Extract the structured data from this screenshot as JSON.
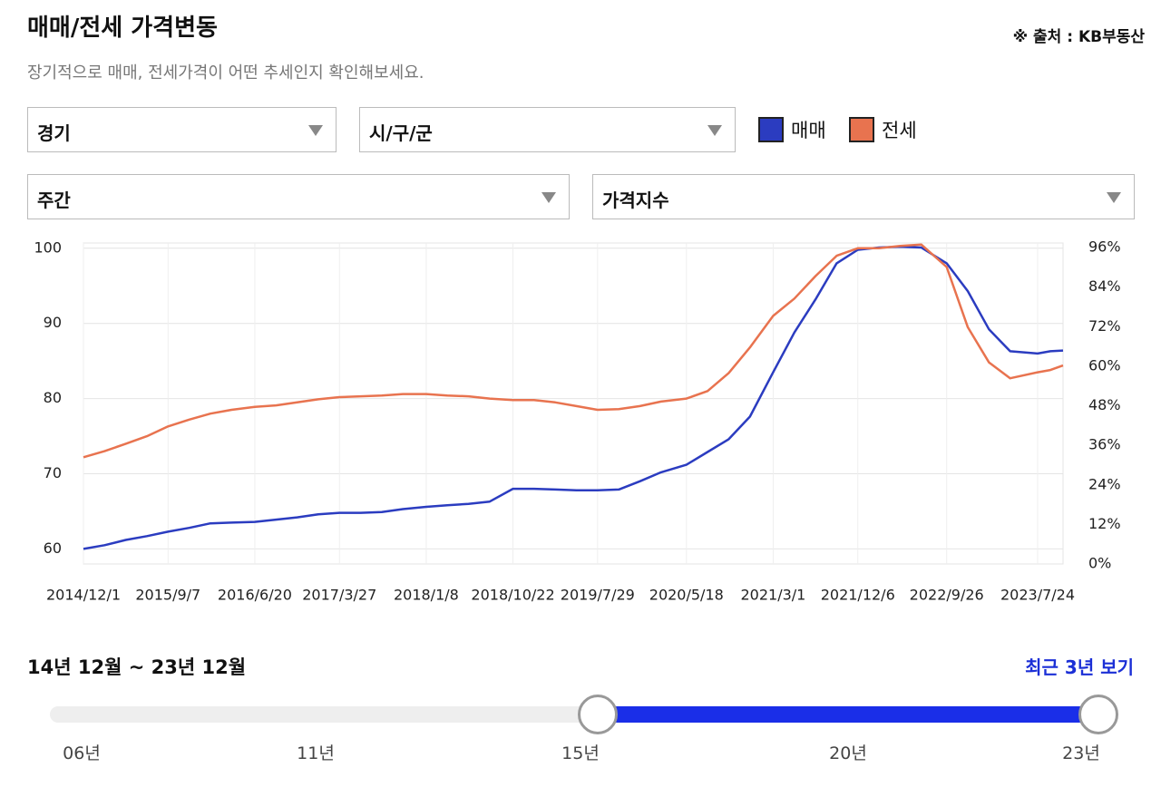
{
  "header": {
    "title": "매매/전세 가격변동",
    "source": "※ 출처 : KB부동산",
    "subtitle": "장기적으로 매매, 전세가격이 어떤 추세인지 확인해보세요."
  },
  "filters": {
    "region": "경기",
    "district": "시/구/군",
    "period": "주간",
    "metric": "가격지수"
  },
  "chart_data": {
    "type": "line",
    "x": [
      "2014/12/1",
      "2015/2/9",
      "2015/4/20",
      "2015/6/29",
      "2015/9/7",
      "2015/11/16",
      "2016/1/25",
      "2016/4/4",
      "2016/6/20",
      "2016/8/29",
      "2016/11/7",
      "2017/1/16",
      "2017/3/27",
      "2017/6/5",
      "2017/8/14",
      "2017/10/23",
      "2018/1/8",
      "2018/3/19",
      "2018/5/28",
      "2018/8/6",
      "2018/10/22",
      "2018/12/31",
      "2019/3/11",
      "2019/5/20",
      "2019/7/29",
      "2019/10/7",
      "2019/12/16",
      "2020/2/24",
      "2020/5/18",
      "2020/7/27",
      "2020/10/5",
      "2020/12/14",
      "2021/3/1",
      "2021/5/10",
      "2021/7/19",
      "2021/9/27",
      "2021/12/6",
      "2022/2/14",
      "2022/4/25",
      "2022/7/4",
      "2022/9/26",
      "2022/12/5",
      "2023/2/13",
      "2023/4/24",
      "2023/7/24",
      "2023/9/4",
      "2023/10/16"
    ],
    "series": [
      {
        "name": "매매",
        "color": "#2b3cc0",
        "values": [
          60.0,
          60.5,
          61.2,
          61.7,
          62.3,
          62.8,
          63.4,
          63.5,
          63.6,
          63.9,
          64.2,
          64.6,
          64.8,
          64.8,
          64.9,
          65.3,
          65.6,
          65.8,
          66.0,
          66.3,
          68.0,
          68.0,
          67.9,
          67.8,
          67.8,
          67.9,
          69.0,
          70.2,
          71.2,
          72.9,
          74.6,
          77.6,
          83.5,
          88.8,
          93.2,
          98.0,
          99.8,
          100.1,
          100.2,
          100.1,
          98.0,
          94.3,
          89.2,
          86.3,
          86.0,
          86.3,
          86.4
        ]
      },
      {
        "name": "전세",
        "color": "#e8734f",
        "values": [
          72.2,
          73.0,
          74.0,
          75.0,
          76.3,
          77.2,
          78.0,
          78.5,
          78.9,
          79.1,
          79.5,
          79.9,
          80.2,
          80.3,
          80.4,
          80.6,
          80.6,
          80.4,
          80.3,
          80.0,
          79.8,
          79.8,
          79.5,
          79.0,
          78.5,
          78.6,
          79.0,
          79.6,
          80.0,
          81.0,
          83.4,
          86.8,
          91.0,
          93.3,
          96.3,
          99.0,
          100.0,
          100.0,
          100.3,
          100.5,
          97.5,
          89.5,
          84.8,
          82.7,
          83.5,
          83.8,
          84.4
        ]
      }
    ],
    "xlim": [
      "2014/12/1",
      "2023/10/16"
    ],
    "xticks": [
      "2014/12/1",
      "2015/9/7",
      "2016/6/20",
      "2017/3/27",
      "2018/1/8",
      "2018/10/22",
      "2019/7/29",
      "2020/5/18",
      "2021/3/1",
      "2021/12/6",
      "2022/9/26",
      "2023/7/24"
    ],
    "ylim": [
      58,
      100.7
    ],
    "yticks": [
      60,
      70,
      80,
      90,
      100
    ],
    "y2lim": [
      0,
      97.4
    ],
    "y2ticks": [
      {
        "value": 0,
        "label": "0%"
      },
      {
        "value": 12,
        "label": "12%"
      },
      {
        "value": 24,
        "label": "24%"
      },
      {
        "value": 36,
        "label": "36%"
      },
      {
        "value": 48,
        "label": "48%"
      },
      {
        "value": 60,
        "label": "60%"
      },
      {
        "value": 72,
        "label": "72%"
      },
      {
        "value": 84,
        "label": "84%"
      },
      {
        "value": 96,
        "label": "96%"
      }
    ],
    "grid": true
  },
  "range": {
    "label": "14년 12월 ~ 23년 12월",
    "recent": "최근 3년 보기",
    "ticks": [
      "06년",
      "11년",
      "15년",
      "20년",
      "23년"
    ]
  }
}
